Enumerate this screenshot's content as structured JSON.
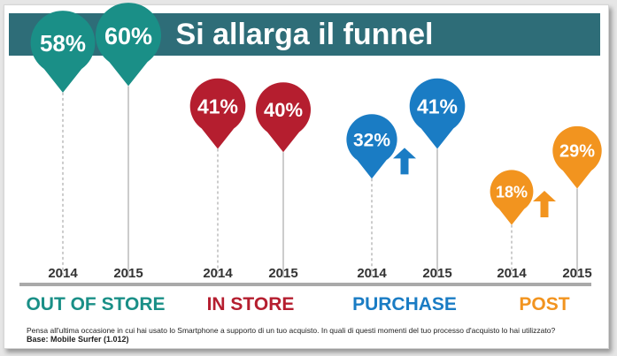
{
  "title": "Si allarga il funnel",
  "question": "Pensa all'ultima occasione in cui hai usato lo Smartphone a supporto di un tuo acquisto. In quali di questi momenti del tuo processo d'acquisto lo hai utilizzato?",
  "base": "Base: Mobile Surfer (1.012)",
  "chart_data": {
    "type": "bar",
    "categories": [
      "OUT OF STORE",
      "IN STORE",
      "PURCHASE",
      "POST"
    ],
    "x": [
      "2014",
      "2015"
    ],
    "series": [
      {
        "values": [
          58,
          41,
          32,
          18
        ]
      },
      {
        "values": [
          60,
          40,
          41,
          29
        ]
      }
    ],
    "labels_2014": [
      "58%",
      "41%",
      "32%",
      "18%"
    ],
    "labels_2015": [
      "60%",
      "40%",
      "41%",
      "29%"
    ],
    "ylim": [
      0,
      70
    ],
    "colors": [
      "#1a8f87",
      "#b51e2f",
      "#1a7cc4",
      "#f2941f"
    ],
    "growth_arrows": [
      "PURCHASE",
      "POST"
    ],
    "grid": false,
    "legend": "none"
  }
}
